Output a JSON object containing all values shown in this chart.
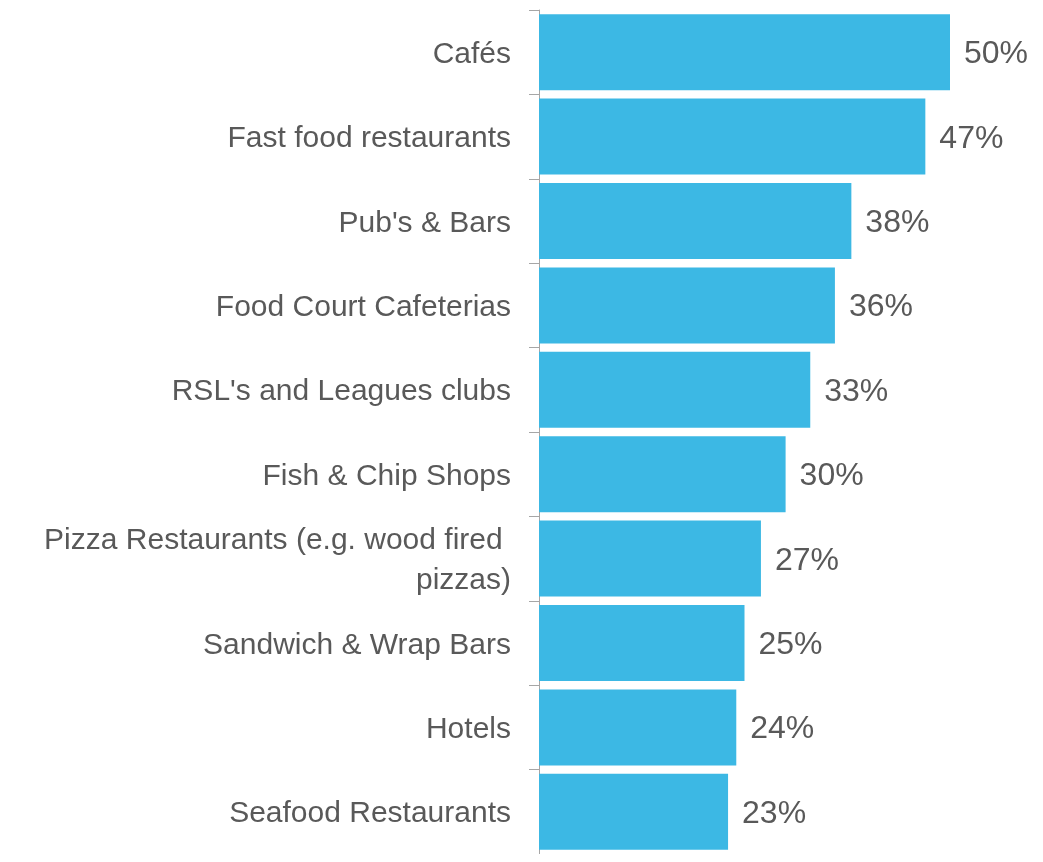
{
  "chart_data": {
    "type": "bar",
    "orientation": "horizontal",
    "categories": [
      "Cafés",
      "Fast food restaurants",
      "Pub's & Bars",
      "Food Court Cafeterias",
      "RSL's and Leagues clubs",
      "Fish & Chip Shops",
      "Pizza Restaurants (e.g. wood fired pizzas)",
      "Sandwich & Wrap Bars",
      "Hotels",
      "Seafood Restaurants"
    ],
    "values": [
      50,
      47,
      38,
      36,
      33,
      30,
      27,
      25,
      24,
      23
    ],
    "value_labels": [
      "50%",
      "47%",
      "38%",
      "36%",
      "33%",
      "30%",
      "27%",
      "25%",
      "24%",
      "23%"
    ],
    "color": "#3cb8e4"
  }
}
